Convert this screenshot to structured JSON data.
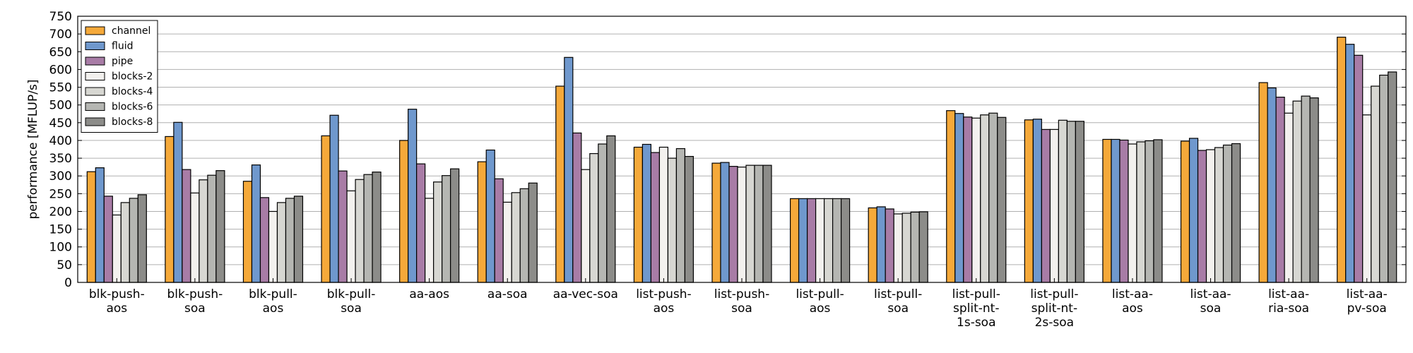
{
  "chart_data": {
    "type": "bar",
    "title": "",
    "xlabel": "",
    "ylabel": "performance [MFLUP/s]",
    "ylim": [
      0,
      750
    ],
    "yticks": [
      0,
      50,
      100,
      150,
      200,
      250,
      300,
      350,
      400,
      450,
      500,
      550,
      600,
      650,
      700,
      750
    ],
    "grid": "horizontal",
    "legend_position": "top-left",
    "categories": [
      [
        "blk-push-",
        "aos"
      ],
      [
        "blk-push-",
        "soa"
      ],
      [
        "blk-pull-",
        "aos"
      ],
      [
        "blk-pull-",
        "soa"
      ],
      [
        "aa-aos"
      ],
      [
        "aa-soa"
      ],
      [
        "aa-vec-soa"
      ],
      [
        "list-push-",
        "aos"
      ],
      [
        "list-push-",
        "soa"
      ],
      [
        "list-pull-",
        "aos"
      ],
      [
        "list-pull-",
        "soa"
      ],
      [
        "list-pull-",
        "split-nt-",
        "1s-soa"
      ],
      [
        "list-pull-",
        "split-nt-",
        "2s-soa"
      ],
      [
        "list-aa-",
        "aos"
      ],
      [
        "list-aa-",
        "soa"
      ],
      [
        "list-aa-",
        "ria-soa"
      ],
      [
        "list-aa-",
        "pv-soa"
      ]
    ],
    "series": [
      {
        "name": "channel",
        "color": "#f5a93a",
        "values": [
          312,
          411,
          285,
          413,
          400,
          340,
          553,
          381,
          336,
          236,
          210,
          484,
          458,
          403,
          398,
          563,
          691
        ]
      },
      {
        "name": "fluid",
        "color": "#6f98cd",
        "values": [
          323,
          451,
          331,
          471,
          488,
          373,
          634,
          389,
          338,
          236,
          213,
          476,
          460,
          403,
          406,
          548,
          671
        ]
      },
      {
        "name": "pipe",
        "color": "#a87ca6",
        "values": [
          243,
          318,
          239,
          314,
          334,
          292,
          421,
          366,
          327,
          236,
          207,
          466,
          431,
          401,
          372,
          522,
          640
        ]
      },
      {
        "name": "blocks-2",
        "color": "#f3f1ee",
        "values": [
          190,
          252,
          200,
          258,
          237,
          226,
          318,
          381,
          325,
          236,
          193,
          463,
          431,
          390,
          374,
          477,
          472
        ]
      },
      {
        "name": "blocks-4",
        "color": "#d7d7d2",
        "values": [
          225,
          289,
          225,
          290,
          283,
          253,
          363,
          350,
          330,
          236,
          195,
          472,
          457,
          396,
          380,
          511,
          553
        ]
      },
      {
        "name": "blocks-6",
        "color": "#b5b6b2",
        "values": [
          237,
          302,
          237,
          304,
          301,
          264,
          390,
          377,
          330,
          236,
          198,
          477,
          454,
          399,
          387,
          525,
          584
        ]
      },
      {
        "name": "blocks-8",
        "color": "#8c8c89",
        "values": [
          247,
          315,
          243,
          311,
          320,
          280,
          413,
          355,
          330,
          236,
          199,
          465,
          454,
          402,
          391,
          520,
          593
        ]
      }
    ]
  }
}
